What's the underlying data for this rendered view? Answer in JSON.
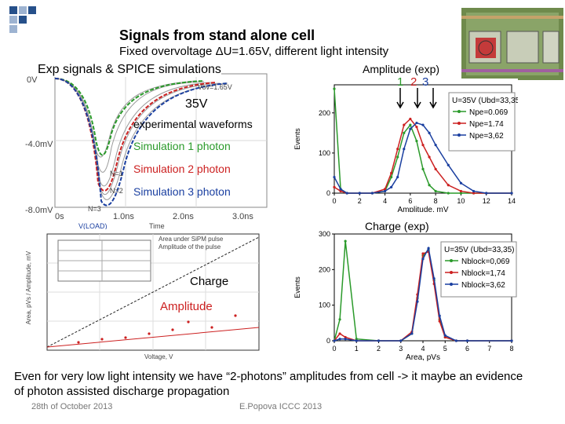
{
  "slide": {
    "title": "Signals from stand alone cell",
    "subtitle": "Fixed overvoltage ΔU=1.65V, different light intensity",
    "footer_line1": "Even for very low light intensity we have “2-photons” amplitudes from cell -> it maybe an evidence",
    "footer_line2": "of photon assisted discharge propagation",
    "date": "28th of October 2013",
    "author": "E.Popova ICCC 2013"
  },
  "left_panel": {
    "header": "Exp signals & SPICE simulations",
    "voltage_label": "35V",
    "exp_label": "experimental waveforms",
    "sim1": "Simulation 1 photon",
    "sim2": "Simulation 2 photon",
    "sim3": "Simulation 3 photon",
    "y_ticks": [
      "0V",
      "-4.0mV",
      "-8.0mV"
    ],
    "x_ticks": [
      "0s",
      "1.0ns",
      "2.0ns",
      "3.0ns"
    ],
    "x_label": "Time",
    "n_labels": [
      "N=1",
      "N=2",
      "N=3"
    ],
    "vov_label": "Vov=1.65V",
    "legend_text": "V(LOAD)",
    "colors": {
      "sim1": "#2a9a2a",
      "sim2": "#cc2020",
      "sim3": "#1a3fa0"
    }
  },
  "bottom_left": {
    "charge_label": "Charge",
    "amplitude_label": "Amplitude",
    "x_label": "Voltage, V",
    "y_label": "Area, pVs / Amplitude, mV",
    "legend_line1": "Area under SiPM pulse",
    "legend_line2": "Amplitude of the pulse"
  },
  "amp_panel": {
    "title": "Amplitude (exp)",
    "peak_labels": [
      "1",
      "2",
      "3"
    ],
    "x_label": "Amplitude, mV",
    "y_label": "Events",
    "x_ticks": [
      "0",
      "2",
      "4",
      "6",
      "8",
      "10",
      "12",
      "14"
    ],
    "y_ticks": [
      "0",
      "100",
      "200"
    ],
    "legend_title": "U=35V (Ubd=33,35)",
    "legend": [
      {
        "name": "Npe=0.069",
        "color": "#2a9a2a"
      },
      {
        "name": "Npe=1.74",
        "color": "#cc2020"
      },
      {
        "name": "Npe=3,62",
        "color": "#1a3fa0"
      }
    ]
  },
  "charge_panel": {
    "title": "Charge (exp)",
    "x_label": "Area, pVs",
    "y_label": "Events",
    "x_ticks": [
      "0",
      "1",
      "2",
      "3",
      "4",
      "5",
      "6",
      "7",
      "8"
    ],
    "y_ticks": [
      "0",
      "100",
      "200",
      "300"
    ],
    "legend_title": "U=35V (Ubd=33,35)",
    "legend": [
      {
        "name": "Nblock=0,069",
        "color": "#2a9a2a"
      },
      {
        "name": "Nblock=1,74",
        "color": "#cc2020"
      },
      {
        "name": "Nblock=3,62",
        "color": "#1a3fa0"
      }
    ]
  },
  "chart_data": [
    {
      "type": "line",
      "title": "Amplitude (exp)",
      "xlabel": "Amplitude, mV",
      "ylabel": "Events",
      "xlim": [
        0,
        14
      ],
      "ylim": [
        0,
        270
      ],
      "x": [
        0,
        0.5,
        1,
        2,
        3,
        4,
        4.5,
        5,
        5.5,
        6,
        6.5,
        7,
        7.5,
        8,
        9,
        10,
        11,
        12,
        14
      ],
      "series": [
        {
          "name": "Npe=0.069",
          "values": [
            260,
            10,
            0,
            0,
            0,
            5,
            40,
            90,
            150,
            170,
            130,
            60,
            20,
            5,
            0,
            0,
            0,
            0,
            0
          ]
        },
        {
          "name": "Npe=1.74",
          "values": [
            15,
            5,
            0,
            0,
            0,
            10,
            50,
            110,
            170,
            185,
            165,
            120,
            90,
            60,
            20,
            5,
            0,
            0,
            0
          ]
        },
        {
          "name": "Npe=3,62",
          "values": [
            40,
            10,
            0,
            0,
            0,
            5,
            15,
            40,
            110,
            160,
            175,
            170,
            150,
            120,
            70,
            25,
            5,
            0,
            0
          ]
        }
      ]
    },
    {
      "type": "line",
      "title": "Charge (exp)",
      "xlabel": "Area, pVs",
      "ylabel": "Events",
      "xlim": [
        0,
        8
      ],
      "ylim": [
        0,
        300
      ],
      "x": [
        0,
        0.25,
        0.5,
        1,
        2,
        3,
        3.5,
        3.75,
        4,
        4.25,
        4.5,
        4.75,
        5,
        5.5,
        6,
        8
      ],
      "series": [
        {
          "name": "Nblock=0,069",
          "values": [
            0,
            60,
            280,
            5,
            0,
            0,
            20,
            120,
            240,
            255,
            170,
            60,
            10,
            0,
            0,
            0
          ]
        },
        {
          "name": "Nblock=1,74",
          "values": [
            0,
            20,
            10,
            0,
            0,
            0,
            25,
            130,
            245,
            250,
            160,
            55,
            10,
            0,
            0,
            0
          ]
        },
        {
          "name": "Nblock=3,62",
          "values": [
            0,
            5,
            5,
            0,
            0,
            0,
            20,
            110,
            230,
            260,
            175,
            70,
            15,
            0,
            0,
            0
          ]
        }
      ]
    }
  ]
}
